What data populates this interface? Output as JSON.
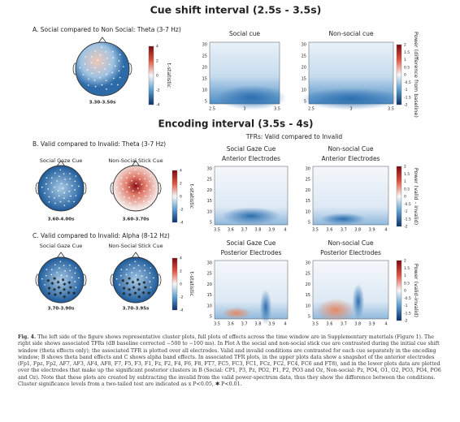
{
  "title": "Cue shift interval (2.5s - 3.5s)",
  "panel_a": {
    "label": "A.  Social compared to Non Social: Theta (3-7 Hz)",
    "topo_times": [
      "3.30-3.50s"
    ],
    "tstat_label": "t-statistic",
    "tstat_ticks": [
      "4",
      "2",
      "0",
      "-2",
      "-4"
    ],
    "tfr_titles": [
      [
        "Social cue"
      ],
      [
        "Non-social cue"
      ]
    ],
    "yticks": [
      "30",
      "25",
      "20",
      "15",
      "10",
      "5"
    ],
    "xticks": [
      "2.5",
      "3",
      "3.5"
    ],
    "power_label": "Power (difference from baseline)",
    "power_ticks": [
      "2",
      "1.5",
      "1",
      "0.5",
      "0",
      "-0.5",
      "-1",
      "-1.5",
      "-2"
    ]
  },
  "encoding_title": "Encoding interval (3.5s - 4s)",
  "tfr_header": "TFRs: Valid compared to Invalid",
  "panel_b": {
    "label": "B.  Valid compared to Invalid: Theta (3-7 Hz)",
    "topo_titles": [
      "Social Gaze Cue",
      "Non-Social Stick Cue"
    ],
    "topo_times": [
      "3.60-4.00s",
      "3.60-3.70s"
    ],
    "tstat_label": "t-statistic",
    "tstat_ticks": [
      "4",
      "2",
      "0",
      "-2",
      "-4"
    ],
    "tfr_titles": [
      [
        "Social Gaze Cue",
        "Anterior Electrodes"
      ],
      [
        "Non-social Cue",
        "Anterior Electrodes"
      ]
    ],
    "yticks": [
      "30",
      "25",
      "20",
      "15",
      "10",
      "5"
    ],
    "xticks": [
      "3.5",
      "3.6",
      "3.7",
      "3.8",
      "3.9",
      "4"
    ],
    "power_label": "Power (valid - invalid)",
    "power_ticks": [
      "2",
      "1.5",
      "1",
      "0.5",
      "0",
      "-0.5",
      "-1",
      "-1.5",
      "-2"
    ]
  },
  "panel_c": {
    "label": "C.  Valid compared to Invalid: Alpha (8-12 Hz)",
    "topo_titles": [
      "Social Gaze Cue",
      "Non-Social Stick Cue"
    ],
    "topo_times": [
      "3.70-3.90s",
      "3.70-3.95s"
    ],
    "tstat_label": "t-statistic",
    "tstat_ticks": [
      "4",
      "2",
      "0",
      "-2",
      "-4"
    ],
    "tfr_titles": [
      [
        "Social Gaze Cue",
        "Posterior Electrodes"
      ],
      [
        "Non-social Cue",
        "Posterior Electrodes"
      ]
    ],
    "yticks": [
      "30",
      "25",
      "20",
      "15",
      "10",
      "5"
    ],
    "xticks": [
      "3.5",
      "3.6",
      "3.7",
      "3.8",
      "3.9",
      "4"
    ],
    "power_label": "Power (valid-invalid)",
    "power_ticks": [
      "2",
      "1.5",
      "1",
      "0.5",
      "0",
      "-0.5",
      "-1",
      "-1.5",
      "-2"
    ]
  },
  "caption": {
    "label": "Fig. 4.",
    "text": "The left side of the figure shows representative cluster plots, full plots of effects across the time window are in Supplementary materials (Figure 1). The right side shows associated TFRs (dB baseline corrected −500 to −100 ms). In Plot A the social and non-social stick cue are contrasted during the initial cue shift window (theta effects only); the associated TFR is plotted over all electrodes. Valid and invalid conditions are contrasted for each cue separately in the encoding window; B shows theta band effects and C shows alpha band effects. In associated TFR plots, in the upper plots data show a snapshot of the anterior electrodes (Fp1, Fpz, Fp2, AF7, AF3, AF4, AF8, F7, F5, F3, F1, Fz, F2, F4, F6, F8, FT7, FC5, FC3, FC1, FCz, FC2, FC4, FC6 and FT8), and in the lower plots data are plotted over the electrodes that make up the significant posterior clusters in B (Social: CP1, P3, Pz, PO2, P1, P2, PO3 and Oz, Non-social: Pz, PO4, O1, O2, PO3, PO4, PO6 and Oz). Note that these plots are created by subtracting the invalid from the valid power-spectrum data, thus they show the difference between the conditions. Cluster significance levels from a two-tailed test are indicated as x P<0.05, ✱ P<0.01."
  }
}
